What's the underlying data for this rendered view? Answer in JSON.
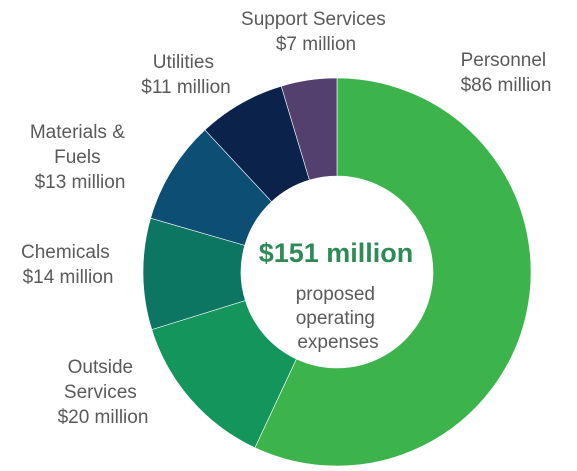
{
  "chart_data": {
    "type": "pie",
    "style": "donut",
    "start": "top",
    "direction": "clockwise",
    "slices": [
      {
        "label": "Personnel",
        "value_text": "$86 million",
        "value": 86,
        "color": "#3cb44b"
      },
      {
        "label": "Outside Services",
        "value_text": "$20 million",
        "value": 20,
        "color": "#13955c"
      },
      {
        "label": "Chemicals",
        "value_text": "$14 million",
        "value": 14,
        "color": "#0d7663"
      },
      {
        "label": "Materials & Fuels",
        "value_text": "$13 million",
        "value": 13,
        "color": "#0c4e74"
      },
      {
        "label": "Utilities",
        "value_text": "$11 million",
        "value": 11,
        "color": "#0b234b"
      },
      {
        "label": "Support Services",
        "value_text": "$7 million",
        "value": 7,
        "color": "#53406f"
      }
    ],
    "center": {
      "value_text": "$151 million",
      "caption": [
        "proposed",
        "operating",
        "expenses"
      ]
    }
  }
}
